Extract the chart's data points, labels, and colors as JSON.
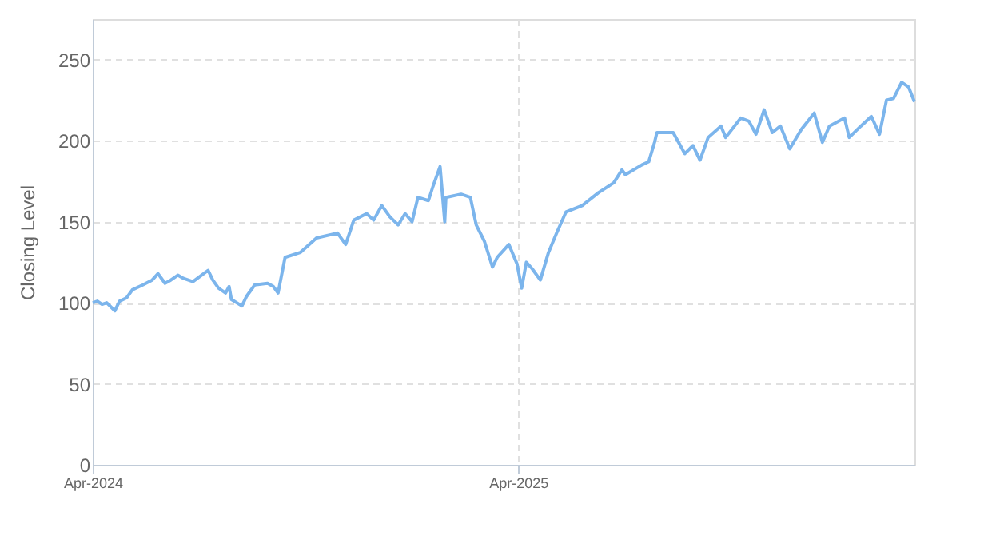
{
  "chart_data": {
    "type": "line",
    "ylabel": "Closing Level",
    "x": [
      "2024-04-01",
      "2024-04-05",
      "2024-04-09",
      "2024-04-13",
      "2024-04-20",
      "2024-04-24",
      "2024-04-30",
      "2024-05-05",
      "2024-05-14",
      "2024-05-22",
      "2024-05-27",
      "2024-06-02",
      "2024-06-07",
      "2024-06-13",
      "2024-06-18",
      "2024-06-26",
      "2024-07-09",
      "2024-07-13",
      "2024-07-18",
      "2024-07-24",
      "2024-07-27",
      "2024-07-29",
      "2024-08-07",
      "2024-08-11",
      "2024-08-18",
      "2024-08-29",
      "2024-09-03",
      "2024-09-07",
      "2024-09-13",
      "2024-09-26",
      "2024-10-10",
      "2024-10-28",
      "2024-11-04",
      "2024-11-11",
      "2024-11-22",
      "2024-11-28",
      "2024-12-05",
      "2024-12-12",
      "2024-12-19",
      "2024-12-25",
      "2024-12-31",
      "2025-01-05",
      "2025-01-14",
      "2025-01-18",
      "2025-01-24",
      "2025-01-28",
      "2025-01-29",
      "2025-02-11",
      "2025-02-19",
      "2025-02-24",
      "2025-03-03",
      "2025-03-10",
      "2025-03-14",
      "2025-03-24",
      "2025-03-31",
      "2025-04-04",
      "2025-04-08",
      "2025-04-13",
      "2025-04-20",
      "2025-04-27",
      "2025-05-04",
      "2025-05-12",
      "2025-05-26",
      "2025-06-09",
      "2025-06-22",
      "2025-06-29",
      "2025-07-02",
      "2025-07-16",
      "2025-07-22",
      "2025-07-27",
      "2025-07-29",
      "2025-08-12",
      "2025-08-22",
      "2025-08-29",
      "2025-09-04",
      "2025-09-11",
      "2025-09-22",
      "2025-09-26",
      "2025-10-09",
      "2025-10-16",
      "2025-10-22",
      "2025-10-29",
      "2025-11-05",
      "2025-11-12",
      "2025-11-20",
      "2025-11-30",
      "2025-12-11",
      "2025-12-18",
      "2025-12-24",
      "2026-01-06",
      "2026-01-10",
      "2026-01-20",
      "2026-01-29",
      "2026-02-05",
      "2026-02-11",
      "2026-02-17",
      "2026-02-24",
      "2026-03-02",
      "2026-03-07"
    ],
    "series": [
      {
        "color": "#7cb5ec",
        "values": [
          100,
          101,
          99,
          100,
          95,
          101,
          103,
          108,
          111,
          114,
          118,
          112,
          114,
          117,
          115,
          113,
          120,
          114,
          109,
          106,
          110,
          102,
          98,
          104,
          111,
          112,
          110,
          106,
          128,
          131,
          140,
          143,
          136,
          151,
          155,
          151,
          160,
          153,
          148,
          155,
          150,
          165,
          163,
          172,
          184,
          150,
          165,
          167,
          165,
          148,
          138,
          122,
          128,
          136,
          124,
          109,
          125,
          121,
          114,
          131,
          143,
          156,
          160,
          168,
          174,
          182,
          179,
          185,
          187,
          199,
          205,
          205,
          192,
          197,
          188,
          202,
          209,
          202,
          214,
          212,
          204,
          219,
          205,
          209,
          195,
          207,
          217,
          199,
          209,
          214,
          202,
          209,
          215,
          204,
          225,
          226,
          236,
          233,
          224
        ]
      }
    ],
    "xlim": [
      "2024-04-01",
      "2026-03-07"
    ],
    "xticks": [
      {
        "value": "2024-04-01",
        "label": "Apr-2024"
      },
      {
        "value": "2025-04-01",
        "label": "Apr-2025"
      }
    ],
    "ylim": [
      0,
      275
    ],
    "yticks": [
      0,
      50,
      100,
      150,
      200,
      250
    ],
    "grid": true,
    "line_style": "solid",
    "marker": "none"
  }
}
